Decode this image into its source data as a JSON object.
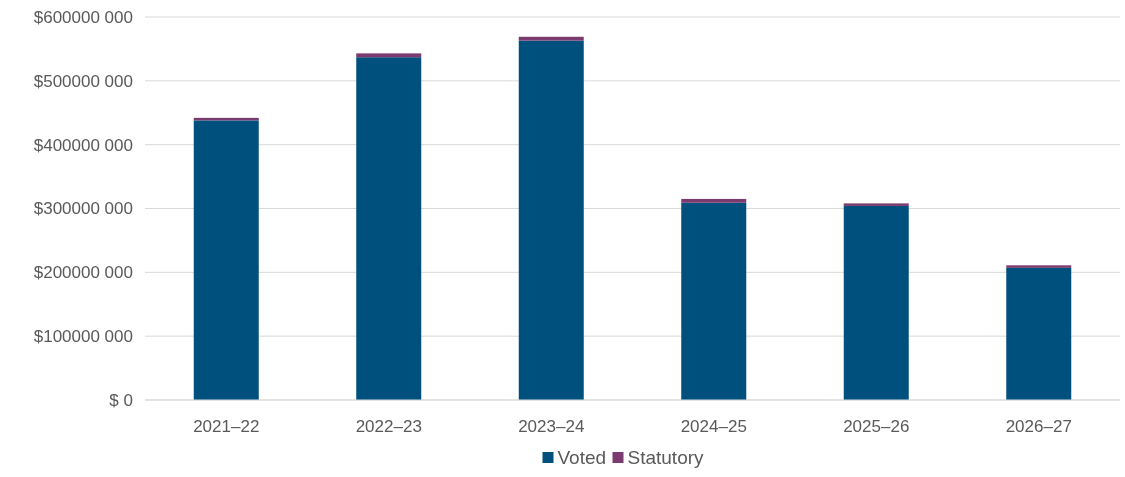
{
  "chart_data": {
    "type": "bar",
    "stacked": true,
    "categories": [
      "2021–22",
      "2022–23",
      "2023–24",
      "2024–25",
      "2025–26",
      "2026–27"
    ],
    "series": [
      {
        "name": "Voted",
        "color": "#00507d",
        "values": [
          438000000,
          537000000,
          563000000,
          309000000,
          304000000,
          207000000
        ]
      },
      {
        "name": "Statutory",
        "color": "#7b3b6f",
        "values": [
          4000000,
          6000000,
          6000000,
          6000000,
          4000000,
          4000000
        ]
      }
    ],
    "ylim": [
      0,
      600000000
    ],
    "yticks": [
      {
        "value": 0,
        "label": "$ 0"
      },
      {
        "value": 100000000,
        "label": "$100000 000"
      },
      {
        "value": 200000000,
        "label": "$200000 000"
      },
      {
        "value": 300000000,
        "label": "$300000 000"
      },
      {
        "value": 400000000,
        "label": "$400000 000"
      },
      {
        "value": 500000000,
        "label": "$500000 000"
      },
      {
        "value": 600000000,
        "label": "$600000 000"
      }
    ],
    "grid": "y",
    "legend": "bottom"
  }
}
